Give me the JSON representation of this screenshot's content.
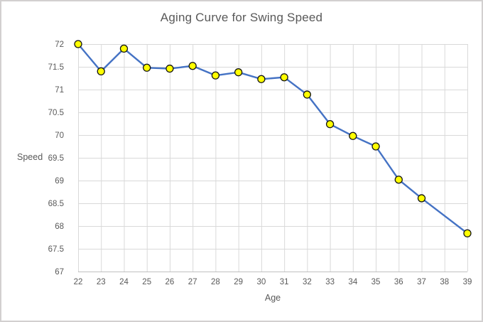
{
  "figure": {
    "background": "#ffffff",
    "border_color": "#d2d0d0"
  },
  "chart_data": {
    "type": "line",
    "title": "Aging Curve for Swing Speed",
    "xlabel": "Age",
    "ylabel": "Speed",
    "x": [
      22,
      23,
      24,
      25,
      26,
      27,
      28,
      29,
      30,
      31,
      32,
      33,
      34,
      35,
      36,
      37,
      39
    ],
    "values": [
      72.0,
      71.4,
      71.9,
      71.48,
      71.46,
      71.52,
      71.31,
      71.38,
      71.23,
      71.27,
      70.89,
      70.24,
      69.98,
      69.75,
      69.02,
      68.61,
      67.84
    ],
    "missing_x": [
      38
    ],
    "xlim": [
      22,
      39
    ],
    "ylim": [
      67,
      72
    ],
    "x_ticks": [
      22,
      23,
      24,
      25,
      26,
      27,
      28,
      29,
      30,
      31,
      32,
      33,
      34,
      35,
      36,
      37,
      38,
      39
    ],
    "x_tick_labels": [
      "22",
      "23",
      "24",
      "25",
      "26",
      "27",
      "28",
      "29",
      "30",
      "31",
      "32",
      "33",
      "34",
      "35",
      "36",
      "37",
      "38",
      "39"
    ],
    "y_ticks": [
      {
        "value": 67,
        "label": "67"
      },
      {
        "value": 67.5,
        "label": "67.5"
      },
      {
        "value": 68,
        "label": "68"
      },
      {
        "value": 68.5,
        "label": "68.5"
      },
      {
        "value": 69,
        "label": "69"
      },
      {
        "value": 69.5,
        "label": "69.5"
      },
      {
        "value": 70,
        "label": "70"
      },
      {
        "value": 70.5,
        "label": "70.5"
      },
      {
        "value": 71,
        "label": "71"
      },
      {
        "value": 71.5,
        "label": "71.5"
      },
      {
        "value": 72,
        "label": "72"
      }
    ],
    "grid": true,
    "legend": false,
    "colors": {
      "line": "#4472C4",
      "marker_fill": "#FFFF00",
      "marker_stroke": "#141414",
      "gridline": "#D9D9D9",
      "axis_line": "#BFBFBF",
      "tick_text": "#595959",
      "title_text": "#595959"
    }
  }
}
